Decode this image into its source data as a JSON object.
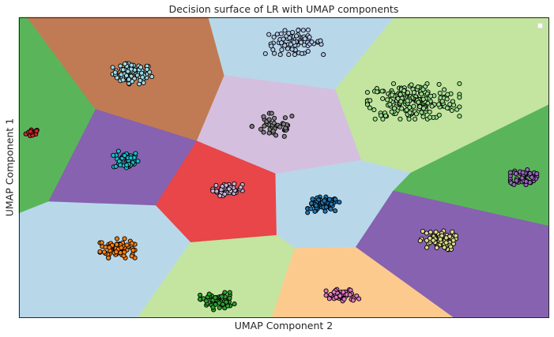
{
  "chart_data": {
    "type": "scatter",
    "title": "Decision surface of LR with UMAP components",
    "xlabel": "UMAP Component 2",
    "ylabel": "UMAP Component 1",
    "xlim": [
      0,
      100
    ],
    "ylim": [
      0,
      100
    ],
    "ticks": "none",
    "grid": false,
    "legend": {
      "placement": "top-right",
      "entries": []
    },
    "regions": [
      {
        "name": "region-top-left-green",
        "color": "#5ab55a",
        "polygon": [
          [
            0,
            100
          ],
          [
            1.6,
            100
          ],
          [
            14.5,
            69.3
          ],
          [
            5.6,
            38.5
          ],
          [
            0,
            34.6
          ]
        ]
      },
      {
        "name": "region-brown",
        "color": "#c07b54",
        "polygon": [
          [
            1.6,
            100
          ],
          [
            35.8,
            100
          ],
          [
            38.8,
            80.6
          ],
          [
            33.6,
            58.7
          ],
          [
            14.5,
            69.3
          ]
        ]
      },
      {
        "name": "region-top-center-blue",
        "color": "#b8d8ea",
        "polygon": [
          [
            35.8,
            100
          ],
          [
            70.9,
            100
          ],
          [
            59.7,
            75.9
          ],
          [
            38.8,
            80.6
          ]
        ]
      },
      {
        "name": "region-top-right-lightgreen",
        "color": "#c3e5a0",
        "polygon": [
          [
            70.9,
            100
          ],
          [
            100,
            100
          ],
          [
            100,
            70.8
          ],
          [
            74,
            48.1
          ],
          [
            64.6,
            52.3
          ],
          [
            59.7,
            75.9
          ]
        ]
      },
      {
        "name": "region-lavender",
        "color": "#d4bfdf",
        "polygon": [
          [
            38.8,
            80.6
          ],
          [
            59.7,
            75.9
          ],
          [
            64.6,
            52.3
          ],
          [
            48.5,
            47.8
          ],
          [
            33.6,
            58.7
          ]
        ]
      },
      {
        "name": "region-left-purple",
        "color": "#8762b1",
        "polygon": [
          [
            14.5,
            69.3
          ],
          [
            33.6,
            58.7
          ],
          [
            25.8,
            37.2
          ],
          [
            5.6,
            38.5
          ]
        ]
      },
      {
        "name": "region-red",
        "color": "#e84649",
        "polygon": [
          [
            33.6,
            58.7
          ],
          [
            48.5,
            47.8
          ],
          [
            48.7,
            27.3
          ],
          [
            32.4,
            24.9
          ],
          [
            25.8,
            37.2
          ]
        ]
      },
      {
        "name": "region-center-blue",
        "color": "#b8d8ea",
        "polygon": [
          [
            48.5,
            47.8
          ],
          [
            64.6,
            52.3
          ],
          [
            74,
            48.1
          ],
          [
            70.7,
            42.1
          ],
          [
            63.6,
            23.3
          ],
          [
            52.1,
            23.0
          ],
          [
            48.7,
            27.3
          ]
        ]
      },
      {
        "name": "region-right-green",
        "color": "#5ab55a",
        "polygon": [
          [
            74,
            48.1
          ],
          [
            100,
            70.8
          ],
          [
            100,
            30.4
          ],
          [
            70.7,
            42.1
          ]
        ]
      },
      {
        "name": "region-bottom-right-purple",
        "color": "#8762b1",
        "polygon": [
          [
            70.7,
            42.1
          ],
          [
            100,
            30.4
          ],
          [
            100,
            0
          ],
          [
            81.9,
            0
          ],
          [
            63.6,
            23.3
          ]
        ]
      },
      {
        "name": "region-bottom-left-blue",
        "color": "#b8d8ea",
        "polygon": [
          [
            0,
            34.6
          ],
          [
            5.6,
            38.5
          ],
          [
            25.8,
            37.2
          ],
          [
            32.4,
            24.9
          ],
          [
            22.5,
            0
          ],
          [
            0,
            0
          ]
        ]
      },
      {
        "name": "region-bottom-lightgreen",
        "color": "#c3e5a0",
        "polygon": [
          [
            32.4,
            24.9
          ],
          [
            48.7,
            27.3
          ],
          [
            52.1,
            23.0
          ],
          [
            47.8,
            0
          ],
          [
            22.5,
            0
          ]
        ]
      },
      {
        "name": "region-bottom-orange",
        "color": "#fdca8e",
        "polygon": [
          [
            52.1,
            23.0
          ],
          [
            63.6,
            23.3
          ],
          [
            81.9,
            0
          ],
          [
            47.8,
            0
          ]
        ]
      }
    ],
    "clusters": [
      {
        "name": "cluster-red",
        "color": "#d62728",
        "center": [
          2.6,
          61.5
        ],
        "spread": [
          1.3,
          1.4
        ],
        "count": 18
      },
      {
        "name": "cluster-light-blue",
        "color": "#9edae5",
        "center": [
          21.4,
          81.2
        ],
        "spread": [
          3.7,
          3.4
        ],
        "count": 80
      },
      {
        "name": "cluster-cyan",
        "color": "#17becf",
        "center": [
          20.2,
          52.4
        ],
        "spread": [
          2.4,
          3.0
        ],
        "count": 45
      },
      {
        "name": "cluster-orange",
        "color": "#ff7f0e",
        "center": [
          18.6,
          23.0
        ],
        "spread": [
          3.3,
          3.2
        ],
        "count": 80
      },
      {
        "name": "cluster-light-purple",
        "color": "#c5b0d5",
        "center": [
          39.4,
          42.5
        ],
        "spread": [
          2.8,
          2.0
        ],
        "count": 45
      },
      {
        "name": "cluster-steel-blue",
        "color": "#aec7e8",
        "center": [
          52.0,
          91.7
        ],
        "spread": [
          5.5,
          4.1
        ],
        "count": 80
      },
      {
        "name": "cluster-gray",
        "color": "#7f7f7f",
        "center": [
          48.2,
          63.8
        ],
        "spread": [
          4.2,
          4.2
        ],
        "count": 45
      },
      {
        "name": "cluster-blue",
        "color": "#1f77b4",
        "center": [
          57.5,
          37.5
        ],
        "spread": [
          3.0,
          2.6
        ],
        "count": 70
      },
      {
        "name": "cluster-light-green",
        "color": "#98df8a",
        "center": [
          74.5,
          72.0
        ],
        "spread": [
          8.7,
          5.9
        ],
        "count": 220
      },
      {
        "name": "cluster-purple",
        "color": "#9467bd",
        "center": [
          95.3,
          46.8
        ],
        "spread": [
          2.5,
          2.7
        ],
        "count": 55
      },
      {
        "name": "cluster-khaki",
        "color": "#dbdb8d",
        "center": [
          79.1,
          25.6
        ],
        "spread": [
          3.4,
          3.2
        ],
        "count": 75
      },
      {
        "name": "cluster-green",
        "color": "#2ca02c",
        "center": [
          37.5,
          5.4
        ],
        "spread": [
          3.3,
          2.9
        ],
        "count": 55
      },
      {
        "name": "cluster-pink",
        "color": "#e377c2",
        "center": [
          61.1,
          7.2
        ],
        "spread": [
          3.1,
          2.2
        ],
        "count": 50
      }
    ]
  }
}
